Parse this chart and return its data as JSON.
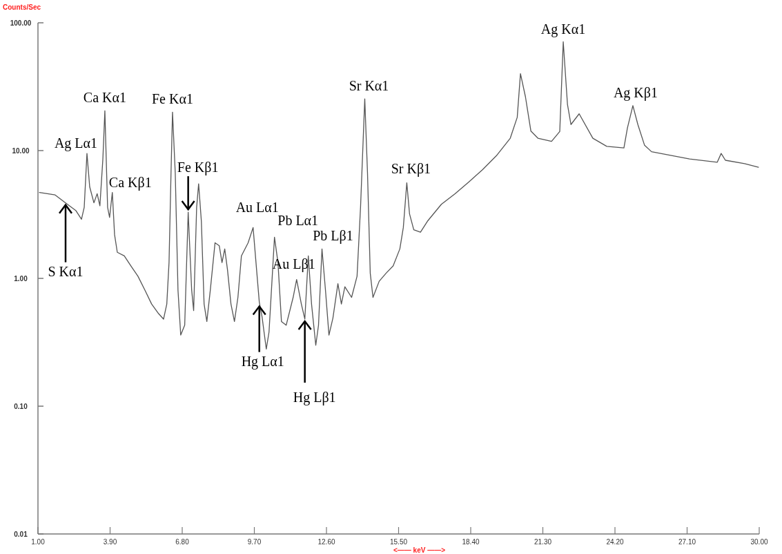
{
  "chart_data": {
    "type": "line",
    "ylabel": "Counts/Sec",
    "xlabel": "<—— keV ——>",
    "log": "y",
    "xlim": [
      1,
      30
    ],
    "ylim": [
      0.01,
      100
    ],
    "xticks": [
      {
        "value": 1,
        "label": "1.00"
      },
      {
        "value": 3.9,
        "label": "3.90"
      },
      {
        "value": 6.8,
        "label": "6.80"
      },
      {
        "value": 9.7,
        "label": "9.70"
      },
      {
        "value": 12.6,
        "label": "12.60"
      },
      {
        "value": 15.5,
        "label": "15.50"
      },
      {
        "value": 18.4,
        "label": "18.40"
      },
      {
        "value": 21.3,
        "label": "21.30"
      },
      {
        "value": 24.2,
        "label": "24.20"
      },
      {
        "value": 27.1,
        "label": "27.10"
      },
      {
        "value": 30,
        "label": "30.00"
      }
    ],
    "yticks": [
      {
        "value": 0.01,
        "label": "0.01"
      },
      {
        "value": 0.1,
        "label": "0.10"
      },
      {
        "value": 1,
        "label": "1.00"
      },
      {
        "value": 10,
        "label": "10.00"
      },
      {
        "value": 100,
        "label": "100.00"
      }
    ],
    "grid": false,
    "marker": "none",
    "line_style": "solid",
    "series": [
      {
        "color": "#555555",
        "x": [
          1.06,
          1.69,
          2.11,
          2.52,
          2.75,
          2.86,
          2.97,
          3.08,
          3.25,
          3.38,
          3.49,
          3.61,
          3.69,
          3.8,
          3.88,
          3.99,
          4.08,
          4.19,
          4.47,
          4.74,
          5.02,
          5.3,
          5.57,
          5.85,
          6.05,
          6.18,
          6.27,
          6.35,
          6.41,
          6.52,
          6.63,
          6.74,
          6.9,
          7.04,
          7.18,
          7.26,
          7.38,
          7.46,
          7.57,
          7.68,
          7.79,
          7.93,
          8.12,
          8.29,
          8.4,
          8.51,
          8.62,
          8.76,
          8.9,
          9.04,
          9.18,
          9.45,
          9.65,
          9.79,
          9.9,
          10.01,
          10.18,
          10.29,
          10.42,
          10.51,
          10.65,
          10.79,
          10.98,
          11.26,
          11.4,
          11.59,
          11.73,
          11.87,
          12.0,
          12.17,
          12.28,
          12.42,
          12.56,
          12.7,
          12.86,
          13.06,
          13.2,
          13.34,
          13.61,
          13.83,
          13.97,
          14.14,
          14.25,
          14.36,
          14.47,
          14.72,
          15.0,
          15.28,
          15.55,
          15.69,
          15.83,
          15.94,
          16.11,
          16.38,
          16.66,
          17.22,
          17.77,
          18.33,
          18.88,
          19.43,
          19.99,
          20.27,
          20.4,
          20.6,
          20.82,
          21.1,
          21.65,
          21.98,
          22.12,
          22.29,
          22.43,
          22.76,
          23.31,
          23.87,
          24.56,
          24.7,
          24.92,
          25.12,
          25.39,
          25.67,
          27.2,
          28.31,
          28.47,
          28.64,
          29.41,
          29.97
        ],
        "values": [
          4.7,
          4.5,
          3.9,
          3.4,
          2.9,
          3.6,
          9.5,
          5.2,
          3.9,
          4.6,
          3.7,
          8.6,
          20.5,
          3.6,
          3.0,
          4.7,
          2.2,
          1.6,
          1.5,
          1.25,
          1.04,
          0.81,
          0.63,
          0.53,
          0.48,
          0.63,
          1.33,
          6.7,
          20,
          6.7,
          0.81,
          0.36,
          0.43,
          3.3,
          0.81,
          0.56,
          3.6,
          5.5,
          2.8,
          0.63,
          0.46,
          0.81,
          1.9,
          1.8,
          1.33,
          1.7,
          1.17,
          0.63,
          0.46,
          0.71,
          1.5,
          1.9,
          2.5,
          1.17,
          0.65,
          0.5,
          0.28,
          0.38,
          1.04,
          2.1,
          1.33,
          0.46,
          0.43,
          0.71,
          0.98,
          0.63,
          0.48,
          1.5,
          0.63,
          0.3,
          0.43,
          1.7,
          0.81,
          0.36,
          0.49,
          0.91,
          0.63,
          0.86,
          0.71,
          1.04,
          3.6,
          25.4,
          6.7,
          1.1,
          0.71,
          0.95,
          1.1,
          1.25,
          1.7,
          2.5,
          5.6,
          3.2,
          2.4,
          2.3,
          2.8,
          3.8,
          4.6,
          5.7,
          7.1,
          9.1,
          12.5,
          18.2,
          40,
          26.4,
          14.2,
          12.5,
          11.8,
          14.1,
          71,
          23,
          16,
          19.4,
          12.5,
          10.8,
          10.5,
          15,
          22.5,
          16,
          11.0,
          9.8,
          8.6,
          8.1,
          9.5,
          8.4,
          7.9,
          7.4
        ]
      }
    ],
    "annotations": [
      {
        "text": "Ag Lα1",
        "x": 2.97,
        "y": 9.5
      },
      {
        "text": "Ca Kα1",
        "x": 3.69,
        "y": 20.5
      },
      {
        "text": "Ca Kβ1",
        "x": 3.99,
        "y": 4.7
      },
      {
        "text": "S Kα1",
        "x": 2.11,
        "y": 3.9
      },
      {
        "text": "Fe Kα1",
        "x": 6.41,
        "y": 20
      },
      {
        "text": "Fe Kβ1",
        "x": 7.04,
        "y": 3.3
      },
      {
        "text": "Au Lα1",
        "x": 9.65,
        "y": 2.5
      },
      {
        "text": "Pb Lα1",
        "x": 10.51,
        "y": 2.1
      },
      {
        "text": "Au Lβ1",
        "x": 11.4,
        "y": 0.98
      },
      {
        "text": "Pb Lβ1",
        "x": 12.42,
        "y": 1.7
      },
      {
        "text": "Hg Lα1",
        "x": 9.9,
        "y": 0.65
      },
      {
        "text": "Hg Lβ1",
        "x": 11.73,
        "y": 0.48
      },
      {
        "text": "Sr Kα1",
        "x": 14.14,
        "y": 25.4
      },
      {
        "text": "Sr Kβ1",
        "x": 15.83,
        "y": 5.6
      },
      {
        "text": "Ag Kα1",
        "x": 22.12,
        "y": 71
      },
      {
        "text": "Ag Kβ1",
        "x": 24.92,
        "y": 22.5
      }
    ]
  }
}
